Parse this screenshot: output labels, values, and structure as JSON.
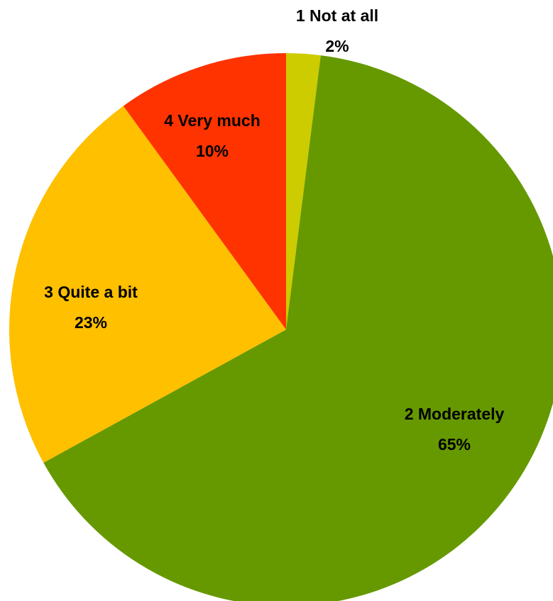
{
  "chart_data": {
    "type": "pie",
    "start_angle_deg": 0,
    "direction": "clockwise",
    "slices": [
      {
        "label": "1 Not at all",
        "value": 2,
        "display": "2%",
        "color": "#CCCC00"
      },
      {
        "label": "2 Moderately",
        "value": 65,
        "display": "65%",
        "color": "#669900"
      },
      {
        "label": "3 Quite a bit",
        "value": 23,
        "display": "23%",
        "color": "#FFC000"
      },
      {
        "label": "4 Very much",
        "value": 10,
        "display": "10%",
        "color": "#FF3300"
      }
    ]
  }
}
